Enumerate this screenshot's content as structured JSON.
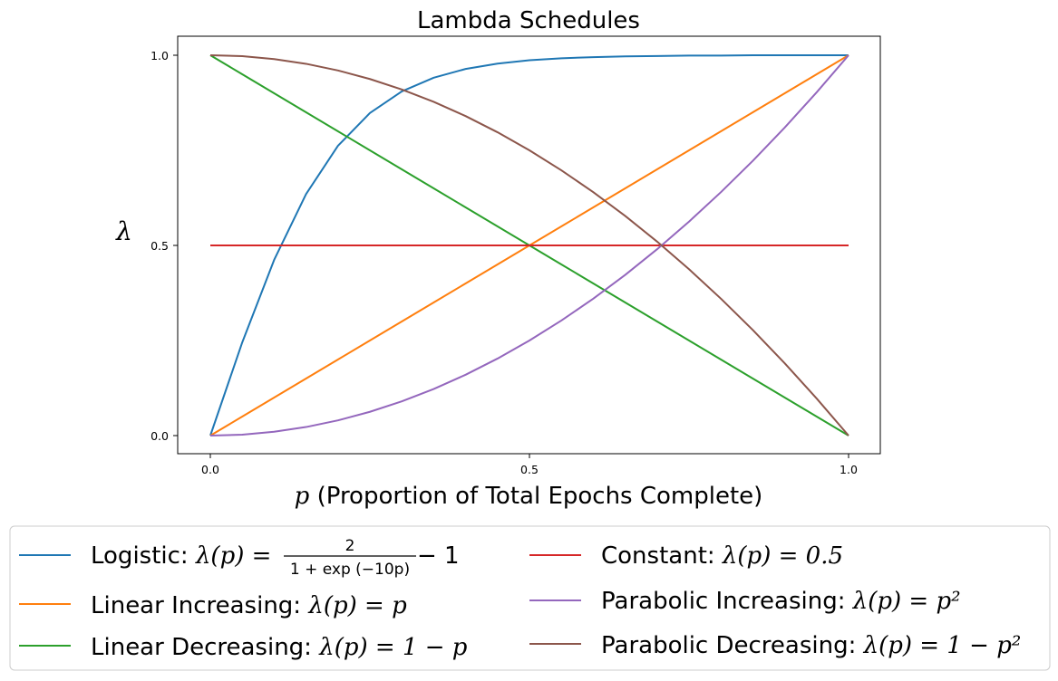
{
  "chart_data": {
    "type": "line",
    "title": "Lambda Schedules",
    "xlabel": "(Proportion of Total Epochs Complete)",
    "xlabel_var": "p",
    "ylabel": "λ",
    "xlim": [
      0.0,
      1.0
    ],
    "ylim": [
      0.0,
      1.0
    ],
    "xticks": [
      "0.0",
      "0.5",
      "1.0"
    ],
    "yticks": [
      "0.0",
      "0.5",
      "1.0"
    ],
    "grid": false,
    "legend_position": "bottom",
    "x": [
      0.0,
      0.05,
      0.1,
      0.15,
      0.2,
      0.25,
      0.3,
      0.35,
      0.4,
      0.45,
      0.5,
      0.55,
      0.6,
      0.65,
      0.7,
      0.75,
      0.8,
      0.85,
      0.9,
      0.95,
      1.0
    ],
    "series": [
      {
        "name": "Logistic",
        "color": "#1f77b4",
        "values": [
          0.0,
          0.245,
          0.462,
          0.635,
          0.762,
          0.848,
          0.905,
          0.941,
          0.964,
          0.978,
          0.987,
          0.992,
          0.995,
          0.997,
          0.998,
          0.999,
          0.999,
          1.0,
          1.0,
          1.0,
          1.0
        ]
      },
      {
        "name": "Linear Increasing",
        "color": "#ff7f0e",
        "values": [
          0.0,
          0.05,
          0.1,
          0.15,
          0.2,
          0.25,
          0.3,
          0.35,
          0.4,
          0.45,
          0.5,
          0.55,
          0.6,
          0.65,
          0.7,
          0.75,
          0.8,
          0.85,
          0.9,
          0.95,
          1.0
        ]
      },
      {
        "name": "Linear Decreasing",
        "color": "#2ca02c",
        "values": [
          1.0,
          0.95,
          0.9,
          0.85,
          0.8,
          0.75,
          0.7,
          0.65,
          0.6,
          0.55,
          0.5,
          0.45,
          0.4,
          0.35,
          0.3,
          0.25,
          0.2,
          0.15,
          0.1,
          0.05,
          0.0
        ]
      },
      {
        "name": "Constant",
        "color": "#d62728",
        "values": [
          0.5,
          0.5,
          0.5,
          0.5,
          0.5,
          0.5,
          0.5,
          0.5,
          0.5,
          0.5,
          0.5,
          0.5,
          0.5,
          0.5,
          0.5,
          0.5,
          0.5,
          0.5,
          0.5,
          0.5,
          0.5
        ]
      },
      {
        "name": "Parabolic Increasing",
        "color": "#9467bd",
        "values": [
          0.0,
          0.0025,
          0.01,
          0.0225,
          0.04,
          0.0625,
          0.09,
          0.1225,
          0.16,
          0.2025,
          0.25,
          0.3025,
          0.36,
          0.4225,
          0.49,
          0.5625,
          0.64,
          0.7225,
          0.81,
          0.9025,
          1.0
        ]
      },
      {
        "name": "Parabolic Decreasing",
        "color": "#8c564b",
        "values": [
          1.0,
          0.9975,
          0.99,
          0.9775,
          0.96,
          0.9375,
          0.91,
          0.8775,
          0.84,
          0.7975,
          0.75,
          0.6975,
          0.64,
          0.5775,
          0.51,
          0.4375,
          0.36,
          0.2775,
          0.19,
          0.0975,
          0.0
        ]
      }
    ],
    "legend": [
      {
        "label": "Logistic:",
        "formula_pre": "λ(p) = ",
        "frac_num": "2",
        "frac_den": "1 + exp (−10p)",
        "formula_post": " − 1"
      },
      {
        "label": "Linear Increasing:",
        "formula": "λ(p) = p"
      },
      {
        "label": "Linear Decreasing:",
        "formula": "λ(p) = 1 − p"
      },
      {
        "label": "Constant:",
        "formula": "λ(p) = 0.5"
      },
      {
        "label": "Parabolic Increasing:",
        "formula": "λ(p) = p²"
      },
      {
        "label": "Parabolic Decreasing:",
        "formula": "λ(p) = 1 − p²"
      }
    ]
  }
}
